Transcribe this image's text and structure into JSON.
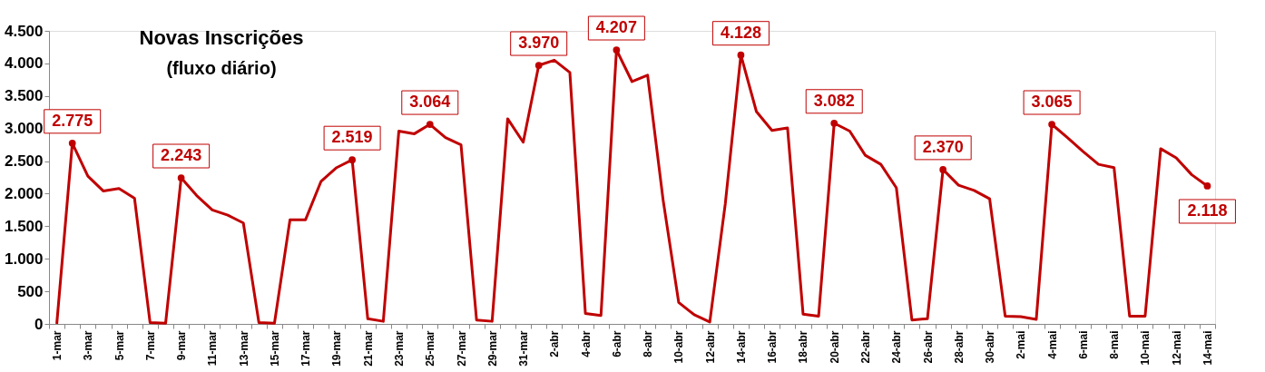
{
  "chart_data": {
    "type": "line",
    "title": "Novas Inscrições",
    "subtitle": "(fluxo diário)",
    "categories": [
      "1-mar",
      null,
      "3-mar",
      null,
      "5-mar",
      null,
      "7-mar",
      null,
      "9-mar",
      null,
      "11-mar",
      null,
      "13-mar",
      null,
      "15-mar",
      null,
      "17-mar",
      null,
      "19-mar",
      null,
      "21-mar",
      null,
      "23-mar",
      null,
      "25-mar",
      null,
      "27-mar",
      null,
      "29-mar",
      null,
      "31-mar",
      null,
      "2-abr",
      null,
      "4-abr",
      null,
      "6-abr",
      null,
      "8-abr",
      null,
      "10-abr",
      null,
      "12-abr",
      null,
      "14-abr",
      null,
      "16-abr",
      null,
      "18-abr",
      null,
      "20-abr",
      null,
      "22-abr",
      null,
      "24-abr",
      null,
      "26-abr",
      null,
      "28-abr",
      null,
      "30-abr",
      null,
      "2-mai",
      null,
      "4-mai",
      null,
      "6-mai",
      null,
      "8-mai",
      null,
      "10-mai",
      null,
      "12-mai",
      null,
      "14-mai"
    ],
    "series": [
      {
        "color": "#c00000",
        "values": [
          0,
          2775,
          2270,
          2040,
          2080,
          1930,
          20,
          10,
          2243,
          1970,
          1750,
          1670,
          1550,
          20,
          10,
          1600,
          1600,
          2190,
          2400,
          2519,
          80,
          40,
          2960,
          2920,
          3064,
          2860,
          2750,
          60,
          40,
          3150,
          2790,
          3970,
          4050,
          3860,
          160,
          130,
          4207,
          3720,
          3820,
          1900,
          330,
          140,
          30,
          1850,
          4128,
          3260,
          2970,
          3010,
          150,
          120,
          3082,
          2960,
          2590,
          2450,
          2090,
          60,
          80,
          2370,
          2130,
          2050,
          1920,
          120,
          110,
          70,
          3065,
          2860,
          2650,
          2450,
          2400,
          120,
          120,
          2690,
          2550,
          2290,
          2118
        ],
        "value_labels": [
          null,
          "2.775",
          null,
          null,
          null,
          null,
          null,
          null,
          "2.243",
          null,
          null,
          null,
          null,
          null,
          null,
          null,
          null,
          null,
          null,
          "2.519",
          null,
          null,
          null,
          null,
          "3.064",
          null,
          null,
          null,
          null,
          null,
          null,
          "3.970",
          null,
          null,
          null,
          null,
          "4.207",
          null,
          null,
          null,
          null,
          null,
          null,
          null,
          "4.128",
          null,
          null,
          null,
          null,
          null,
          "3.082",
          null,
          null,
          null,
          null,
          null,
          null,
          "2.370",
          null,
          null,
          null,
          null,
          null,
          null,
          "3.065",
          null,
          null,
          null,
          null,
          null,
          null,
          null,
          null,
          null,
          "2.118"
        ]
      }
    ],
    "ylim": [
      0,
      4500
    ],
    "yticks": [
      0,
      500,
      {
        "value": 1000,
        "label": "1.000"
      },
      {
        "value": 1500,
        "label": "1.500"
      },
      {
        "value": 2000,
        "label": "2.000"
      },
      {
        "value": 2500,
        "label": "2.500"
      },
      {
        "value": 3000,
        "label": "3.000"
      },
      {
        "value": 3500,
        "label": "3.500"
      },
      {
        "value": 4000,
        "label": "4.000"
      },
      {
        "value": 4500,
        "label": "4.500"
      }
    ],
    "grid": false,
    "marker": "none",
    "line_style": "solid"
  }
}
